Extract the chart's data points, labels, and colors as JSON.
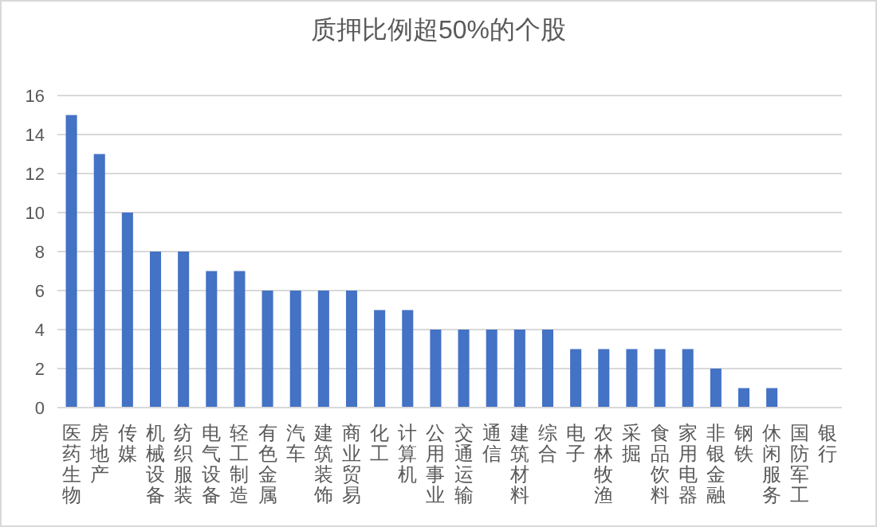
{
  "chart_data": {
    "type": "bar",
    "title": "质押比例超50%的个股",
    "categories": [
      "医药生物",
      "房地产",
      "传媒",
      "机械设备",
      "纺织服装",
      "电气设备",
      "轻工制造",
      "有色金属",
      "汽车",
      "建筑装饰",
      "商业贸易",
      "化工",
      "计算机",
      "公用事业",
      "交通运输",
      "通信",
      "建筑材料",
      "综合",
      "电子",
      "农林牧渔",
      "采掘",
      "食品饮料",
      "家用电器",
      "非银金融",
      "钢铁",
      "休闲服务",
      "国防军工",
      "银行"
    ],
    "values": [
      15,
      13,
      10,
      8,
      8,
      7,
      7,
      6,
      6,
      6,
      6,
      5,
      5,
      4,
      4,
      4,
      4,
      4,
      3,
      3,
      3,
      3,
      3,
      2,
      1,
      1,
      0,
      0
    ],
    "color": "#4472c4",
    "ylim": [
      0,
      16
    ],
    "yticks": [
      0,
      2,
      4,
      6,
      8,
      10,
      12,
      14,
      16
    ],
    "grid": "y"
  }
}
